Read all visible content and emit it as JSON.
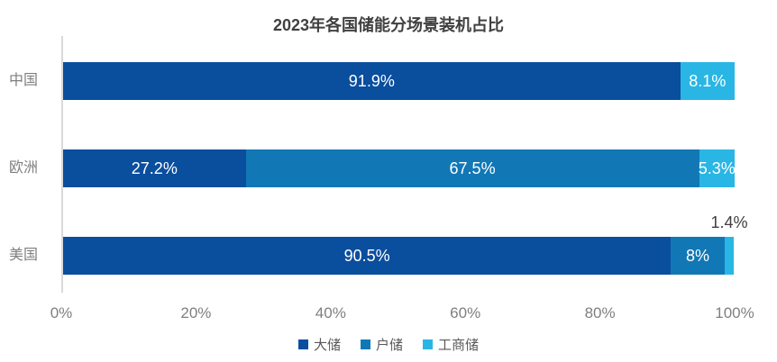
{
  "chart_data": {
    "type": "bar",
    "orientation": "horizontal",
    "stacked": true,
    "title": "2023年各国储能分场景装机占比",
    "categories": [
      "中国",
      "欧洲",
      "美国"
    ],
    "series": [
      {
        "key": "utility",
        "name": "大储",
        "color": "#0a4e9e",
        "values": [
          91.9,
          27.2,
          90.5
        ],
        "labels": [
          "91.9%",
          "27.2%",
          "90.5%"
        ]
      },
      {
        "key": "residential",
        "name": "户储",
        "color": "#1278b5",
        "values": [
          0,
          67.5,
          8
        ],
        "labels": [
          "",
          "67.5%",
          "8%"
        ]
      },
      {
        "key": "commercial-industrial",
        "name": "工商储",
        "color": "#29b6e4",
        "values": [
          8.1,
          5.3,
          1.4
        ],
        "labels": [
          "8.1%",
          "5.3%",
          "1.4%"
        ]
      }
    ],
    "x_ticks": [
      "0%",
      "20%",
      "40%",
      "60%",
      "80%",
      "100%"
    ],
    "xlim": [
      0,
      100
    ],
    "grid": false,
    "legend_position": "bottom",
    "axis_line_color": "#d9d9d9",
    "title_color": "#404040",
    "tick_label_color": "#7f7f7f",
    "category_label_color": "#7f7f7f",
    "legend_text_color": "#595959"
  }
}
